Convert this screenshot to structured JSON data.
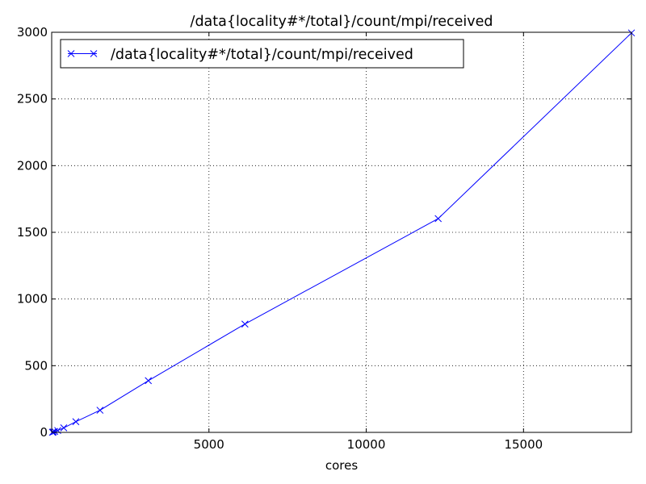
{
  "chart_data": {
    "type": "line",
    "title": "/data{locality#*/total}/count/mpi/received",
    "xlabel": "cores",
    "ylabel": "",
    "xlim": [
      0,
      18432
    ],
    "ylim": [
      0,
      3000
    ],
    "xticks": [
      5000,
      10000,
      15000
    ],
    "yticks": [
      0,
      500,
      1000,
      1500,
      2000,
      2500,
      3000
    ],
    "grid": true,
    "legend_position": "top-left",
    "series": [
      {
        "name": "/data{locality#*/total}/count/mpi/received",
        "color": "#0000ff",
        "marker": "x",
        "x": [
          24,
          48,
          96,
          192,
          384,
          768,
          1536,
          3072,
          6144,
          12288,
          18432
        ],
        "y": [
          1,
          3,
          7,
          14,
          34,
          80,
          166,
          388,
          812,
          1603,
          2995
        ]
      }
    ]
  }
}
